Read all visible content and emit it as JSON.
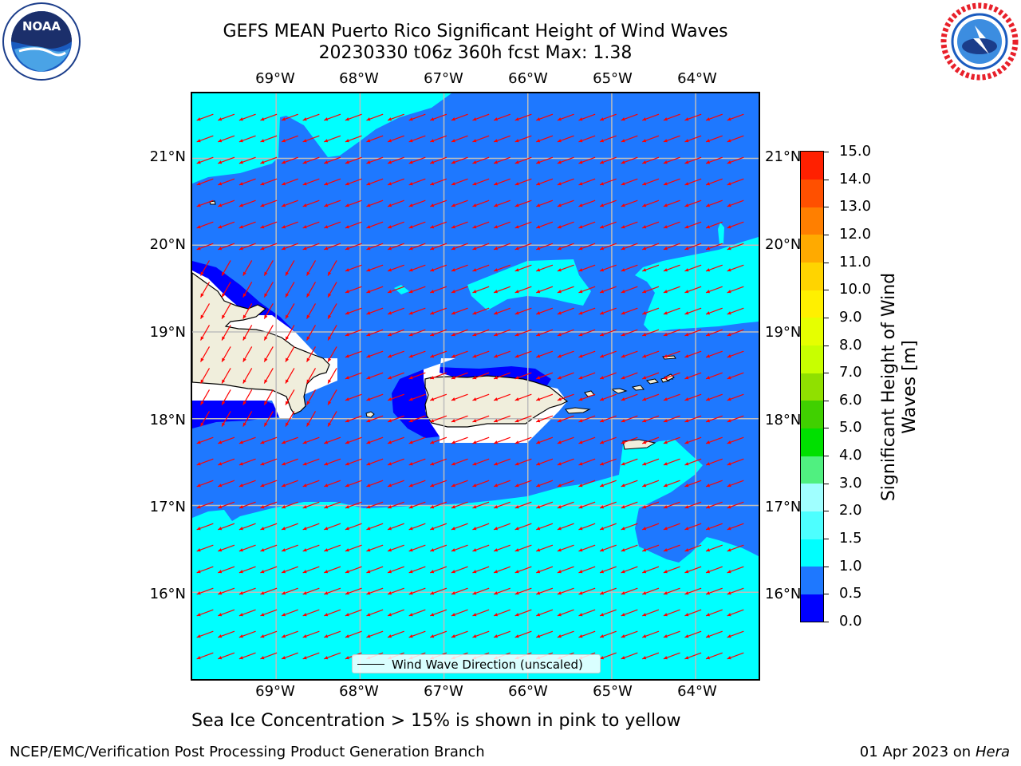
{
  "title": {
    "line1": "GEFS MEAN Puerto Rico Significant Height of Wind Waves",
    "line2": "20230330 t06z 360h fcst   Max: 1.38"
  },
  "logos": {
    "left": "noaa-logo",
    "right": "nws-logo"
  },
  "map": {
    "lon_ticks": [
      "69°W",
      "68°W",
      "67°W",
      "66°W",
      "65°W",
      "64°W"
    ],
    "lat_ticks": [
      "21°N",
      "20°N",
      "19°N",
      "18°N",
      "17°N",
      "16°N"
    ],
    "lon_values": [
      -69,
      -68,
      -67,
      -66,
      -65,
      -64
    ],
    "lat_values": [
      21,
      20,
      19,
      18,
      17,
      16
    ],
    "extent": {
      "lon_min": -70.0,
      "lon_max": -63.25,
      "lat_min": 15.0,
      "lat_max": 21.75
    },
    "arrow_color": "#ff0000",
    "land_color": "#f0eedc",
    "legend_label": "Wind Wave Direction (unscaled)"
  },
  "colorbar": {
    "label": "Significant Height of Wind Waves [m]",
    "label_line1": "Significant Height of Wind",
    "label_line2": "Waves [m]",
    "tick_labels": [
      "0.0",
      "0.5",
      "1.0",
      "1.5",
      "2.0",
      "3.0",
      "4.0",
      "5.0",
      "6.0",
      "7.0",
      "8.0",
      "9.0",
      "10.0",
      "11.0",
      "12.0",
      "13.0",
      "14.0",
      "15.0"
    ],
    "colors": [
      "#0000ff",
      "#1e78ff",
      "#00ffff",
      "#4dffff",
      "#a0ffff",
      "#50f080",
      "#00e000",
      "#40d000",
      "#90e000",
      "#c8ff00",
      "#e6ff00",
      "#fff000",
      "#ffd400",
      "#ffaa00",
      "#ff7f00",
      "#ff5000",
      "#ff2000"
    ]
  },
  "notes": {
    "sea_ice": "Sea Ice Concentration > 15% is shown in pink to yellow"
  },
  "footer": {
    "left": "NCEP/EMC/Verification Post Processing Product Generation Branch",
    "right_date": "01 Apr 2023 on ",
    "right_host": "Hera"
  }
}
